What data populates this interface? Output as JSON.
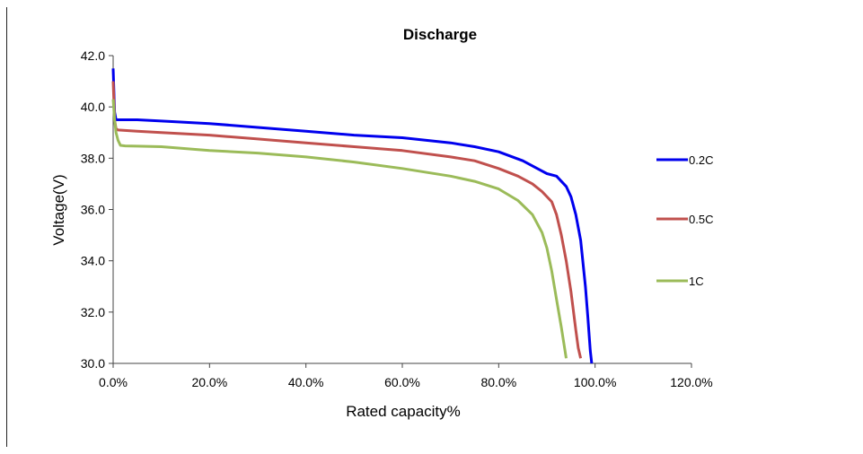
{
  "chart_data": {
    "type": "line",
    "title": "Discharge",
    "xlabel": "Rated capacity%",
    "ylabel": "Voltage(V)",
    "xlim": [
      0,
      120
    ],
    "ylim": [
      30,
      42
    ],
    "xticks": [
      "0.0%",
      "20.0%",
      "40.0%",
      "60.0%",
      "80.0%",
      "100.0%",
      "120.0%"
    ],
    "yticks": [
      "30.0",
      "32.0",
      "34.0",
      "36.0",
      "38.0",
      "40.0",
      "42.0"
    ],
    "grid": false,
    "legend_position": "right",
    "series": [
      {
        "name": "0.2C",
        "color": "#0000ee",
        "x": [
          0,
          0.3,
          0.6,
          1,
          5,
          10,
          20,
          30,
          40,
          50,
          60,
          70,
          75,
          80,
          85,
          88,
          90,
          92,
          94,
          95,
          96,
          97,
          98,
          98.5,
          99,
          99.3
        ],
        "y": [
          41.5,
          39.8,
          39.5,
          39.5,
          39.5,
          39.45,
          39.35,
          39.2,
          39.05,
          38.9,
          38.8,
          38.6,
          38.45,
          38.25,
          37.9,
          37.6,
          37.4,
          37.3,
          36.9,
          36.5,
          35.8,
          34.8,
          33.0,
          31.8,
          30.5,
          30.0
        ]
      },
      {
        "name": "0.5C",
        "color": "#c0504d",
        "x": [
          0,
          0.3,
          0.6,
          1,
          5,
          10,
          20,
          30,
          40,
          50,
          60,
          70,
          75,
          80,
          84,
          87,
          89,
          91,
          92,
          93,
          94,
          95,
          96,
          96.5,
          97
        ],
        "y": [
          41.0,
          39.5,
          39.15,
          39.1,
          39.05,
          39.0,
          38.9,
          38.75,
          38.6,
          38.45,
          38.3,
          38.05,
          37.9,
          37.6,
          37.3,
          37.0,
          36.7,
          36.3,
          35.8,
          35.0,
          34.0,
          32.8,
          31.3,
          30.6,
          30.2
        ]
      },
      {
        "name": "1C",
        "color": "#9bbb59",
        "x": [
          0,
          0.3,
          0.6,
          1,
          1.5,
          2.5,
          5,
          10,
          20,
          30,
          40,
          50,
          60,
          70,
          75,
          80,
          84,
          87,
          89,
          90,
          91,
          92,
          93,
          93.5,
          94
        ],
        "y": [
          40.3,
          39.5,
          39.0,
          38.7,
          38.5,
          38.48,
          38.47,
          38.45,
          38.3,
          38.2,
          38.05,
          37.85,
          37.6,
          37.3,
          37.1,
          36.8,
          36.35,
          35.8,
          35.1,
          34.5,
          33.6,
          32.5,
          31.4,
          30.8,
          30.2
        ]
      }
    ]
  }
}
